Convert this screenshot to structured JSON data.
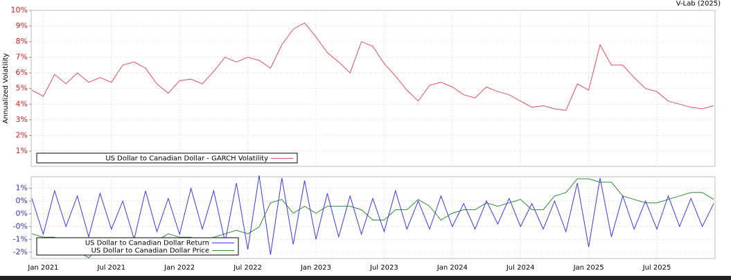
{
  "header": "V-Lab (2025)",
  "chart_data": [
    {
      "type": "line",
      "ylabel": "Annualized Volatility",
      "legend": "lower left",
      "grid": true,
      "x": [
        "2020-12",
        "2021-01",
        "2021-02",
        "2021-03",
        "2021-04",
        "2021-05",
        "2021-06",
        "2021-07",
        "2021-08",
        "2021-09",
        "2021-10",
        "2021-11",
        "2021-12",
        "2022-01",
        "2022-02",
        "2022-03",
        "2022-04",
        "2022-05",
        "2022-06",
        "2022-07",
        "2022-08",
        "2022-09",
        "2022-10",
        "2022-11",
        "2022-12",
        "2023-01",
        "2023-02",
        "2023-03",
        "2023-04",
        "2023-05",
        "2023-06",
        "2023-07",
        "2023-08",
        "2023-09",
        "2023-10",
        "2023-11",
        "2023-12",
        "2024-01",
        "2024-02",
        "2024-03",
        "2024-04",
        "2024-05",
        "2024-06",
        "2024-07",
        "2024-08",
        "2024-09",
        "2024-10",
        "2024-11",
        "2024-12",
        "2025-01",
        "2025-02",
        "2025-03",
        "2025-04",
        "2025-05",
        "2025-06",
        "2025-07",
        "2025-08",
        "2025-09",
        "2025-10",
        "2025-11",
        "2025-12"
      ],
      "xlim": [
        "2020-12",
        "2025-12"
      ],
      "xticks": [
        "2021-01",
        "2021-07",
        "2022-01",
        "2022-07",
        "2023-01",
        "2023-07",
        "2024-01",
        "2024-07",
        "2025-01",
        "2025-07"
      ],
      "ylim": [
        0.02,
        10
      ],
      "yticks": [
        {
          "value": 1,
          "label": "1%"
        },
        {
          "value": 2,
          "label": "2%"
        },
        {
          "value": 3,
          "label": "3%"
        },
        {
          "value": 4,
          "label": "4%"
        },
        {
          "value": 5,
          "label": "5%"
        },
        {
          "value": 6,
          "label": "6%"
        },
        {
          "value": 7,
          "label": "7%"
        },
        {
          "value": 8,
          "label": "8%"
        },
        {
          "value": 9,
          "label": "9%"
        },
        {
          "value": 10,
          "label": "10%"
        }
      ],
      "tick_color": "#cc2222",
      "series": [
        {
          "name": "US Dollar to Canadian Dollar - GARCH Volatility",
          "color": "#e0505a",
          "axis": "y",
          "values": [
            4.9,
            4.5,
            5.9,
            5.3,
            6.0,
            5.4,
            5.7,
            5.4,
            6.5,
            6.7,
            6.3,
            5.3,
            4.7,
            5.5,
            5.6,
            5.3,
            6.1,
            7.0,
            6.7,
            7.0,
            6.8,
            6.3,
            7.8,
            8.8,
            9.2,
            8.3,
            7.3,
            6.7,
            6.0,
            8.0,
            7.7,
            6.6,
            5.8,
            4.9,
            4.2,
            5.2,
            5.4,
            5.1,
            4.6,
            4.4,
            5.1,
            4.8,
            4.6,
            4.2,
            3.8,
            3.9,
            3.7,
            3.6,
            5.3,
            4.9,
            7.8,
            6.5,
            6.5,
            5.7,
            5.0,
            4.8,
            4.2,
            4.0,
            3.8,
            3.7,
            3.9
          ]
        }
      ]
    },
    {
      "type": "line",
      "legend": "lower left",
      "grid": true,
      "x": [
        "2020-12",
        "2021-01",
        "2021-02",
        "2021-03",
        "2021-04",
        "2021-05",
        "2021-06",
        "2021-07",
        "2021-08",
        "2021-09",
        "2021-10",
        "2021-11",
        "2021-12",
        "2022-01",
        "2022-02",
        "2022-03",
        "2022-04",
        "2022-05",
        "2022-06",
        "2022-07",
        "2022-08",
        "2022-09",
        "2022-10",
        "2022-11",
        "2022-12",
        "2023-01",
        "2023-02",
        "2023-03",
        "2023-04",
        "2023-05",
        "2023-06",
        "2023-07",
        "2023-08",
        "2023-09",
        "2023-10",
        "2023-11",
        "2023-12",
        "2024-01",
        "2024-02",
        "2024-03",
        "2024-04",
        "2024-05",
        "2024-06",
        "2024-07",
        "2024-08",
        "2024-09",
        "2024-10",
        "2024-11",
        "2024-12",
        "2025-01",
        "2025-02",
        "2025-03",
        "2025-04",
        "2025-05",
        "2025-06",
        "2025-07",
        "2025-08",
        "2025-09",
        "2025-10",
        "2025-11",
        "2025-12"
      ],
      "xlim": [
        "2020-12",
        "2025-12"
      ],
      "xticks": [
        {
          "value": "2021-01",
          "label": "Jan 2021"
        },
        {
          "value": "2021-07",
          "label": "Jul 2021"
        },
        {
          "value": "2022-01",
          "label": "Jan 2022"
        },
        {
          "value": "2022-07",
          "label": "Jul 2022"
        },
        {
          "value": "2023-01",
          "label": "Jan 2023"
        },
        {
          "value": "2023-07",
          "label": "Jul 2023"
        },
        {
          "value": "2024-01",
          "label": "Jan 2024"
        },
        {
          "value": "2024-07",
          "label": "Jul 2024"
        },
        {
          "value": "2025-01",
          "label": "Jan 2025"
        },
        {
          "value": "2025-07",
          "label": "Jul 2025"
        }
      ],
      "ylim": [
        -1.75,
        1.45
      ],
      "yticks": [
        {
          "value": 1,
          "label": "1%"
        },
        {
          "value": 0.5,
          "label": "0%"
        },
        {
          "value": 0,
          "label": "0%"
        },
        {
          "value": -0.5,
          "label": "-0%"
        },
        {
          "value": -1,
          "label": "-1%"
        },
        {
          "value": -1.5,
          "label": "-2%"
        }
      ],
      "tick_color": "#3333cc",
      "y2lim": [
        1.208,
        1.446
      ],
      "series": [
        {
          "name": "US Dollar to Canadian Dollar Return",
          "color": "#3838f0",
          "axis": "y",
          "values": [
            0.6,
            -0.8,
            0.9,
            -0.5,
            0.7,
            -0.9,
            0.8,
            -0.6,
            0.5,
            -1.0,
            0.9,
            -0.7,
            0.6,
            -0.8,
            1.0,
            -0.6,
            0.9,
            -1.1,
            1.2,
            -1.4,
            1.5,
            -1.6,
            1.4,
            -1.2,
            1.3,
            -1.0,
            0.8,
            -0.9,
            0.7,
            -0.8,
            0.6,
            -0.7,
            0.9,
            -0.6,
            0.5,
            -0.6,
            0.7,
            -0.5,
            0.4,
            -0.6,
            0.5,
            -0.4,
            0.6,
            -0.5,
            0.4,
            -0.6,
            0.5,
            -0.7,
            1.2,
            -1.3,
            1.4,
            -0.9,
            0.7,
            -0.6,
            0.5,
            -0.6,
            0.7,
            -0.5,
            0.6,
            -0.5,
            0.4
          ]
        },
        {
          "name": "US Dollar to Canadian Dollar Price",
          "color": "#2e8b2e",
          "axis": "y2",
          "values": [
            1.28,
            1.27,
            1.27,
            1.25,
            1.23,
            1.21,
            1.24,
            1.25,
            1.26,
            1.27,
            1.24,
            1.26,
            1.28,
            1.27,
            1.27,
            1.25,
            1.27,
            1.28,
            1.29,
            1.28,
            1.3,
            1.37,
            1.38,
            1.34,
            1.36,
            1.34,
            1.36,
            1.36,
            1.36,
            1.35,
            1.32,
            1.32,
            1.35,
            1.35,
            1.38,
            1.36,
            1.32,
            1.34,
            1.35,
            1.35,
            1.37,
            1.36,
            1.37,
            1.38,
            1.35,
            1.35,
            1.39,
            1.4,
            1.44,
            1.44,
            1.43,
            1.43,
            1.39,
            1.38,
            1.37,
            1.37,
            1.38,
            1.39,
            1.4,
            1.4,
            1.38
          ]
        }
      ]
    }
  ]
}
